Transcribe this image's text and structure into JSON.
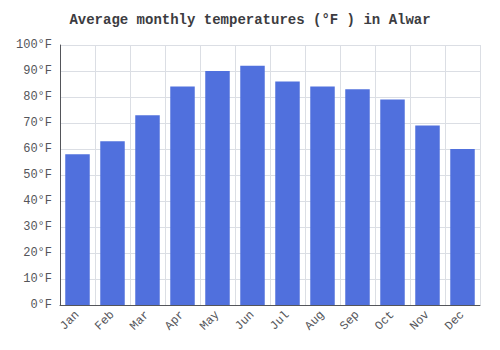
{
  "chart_data": {
    "type": "bar",
    "title": "Average monthly temperatures (°F ) in Alwar",
    "categories": [
      "Jan",
      "Feb",
      "Mar",
      "Apr",
      "May",
      "Jun",
      "Jul",
      "Aug",
      "Sep",
      "Oct",
      "Nov",
      "Dec"
    ],
    "values": [
      58,
      63,
      73,
      84,
      90,
      92,
      86,
      84,
      83,
      79,
      69,
      60
    ],
    "ylim": [
      0,
      100
    ],
    "yticks": [
      {
        "value": 0,
        "label": "0°F"
      },
      {
        "value": 10,
        "label": "10°F"
      },
      {
        "value": 20,
        "label": "20°F"
      },
      {
        "value": 30,
        "label": "30°F"
      },
      {
        "value": 40,
        "label": "40°F"
      },
      {
        "value": 50,
        "label": "50°F"
      },
      {
        "value": 60,
        "label": "60°F"
      },
      {
        "value": 70,
        "label": "70°F"
      },
      {
        "value": 80,
        "label": "80°F"
      },
      {
        "value": 90,
        "label": "90°F"
      },
      {
        "value": 100,
        "label": "100°F"
      }
    ],
    "grid": true
  }
}
